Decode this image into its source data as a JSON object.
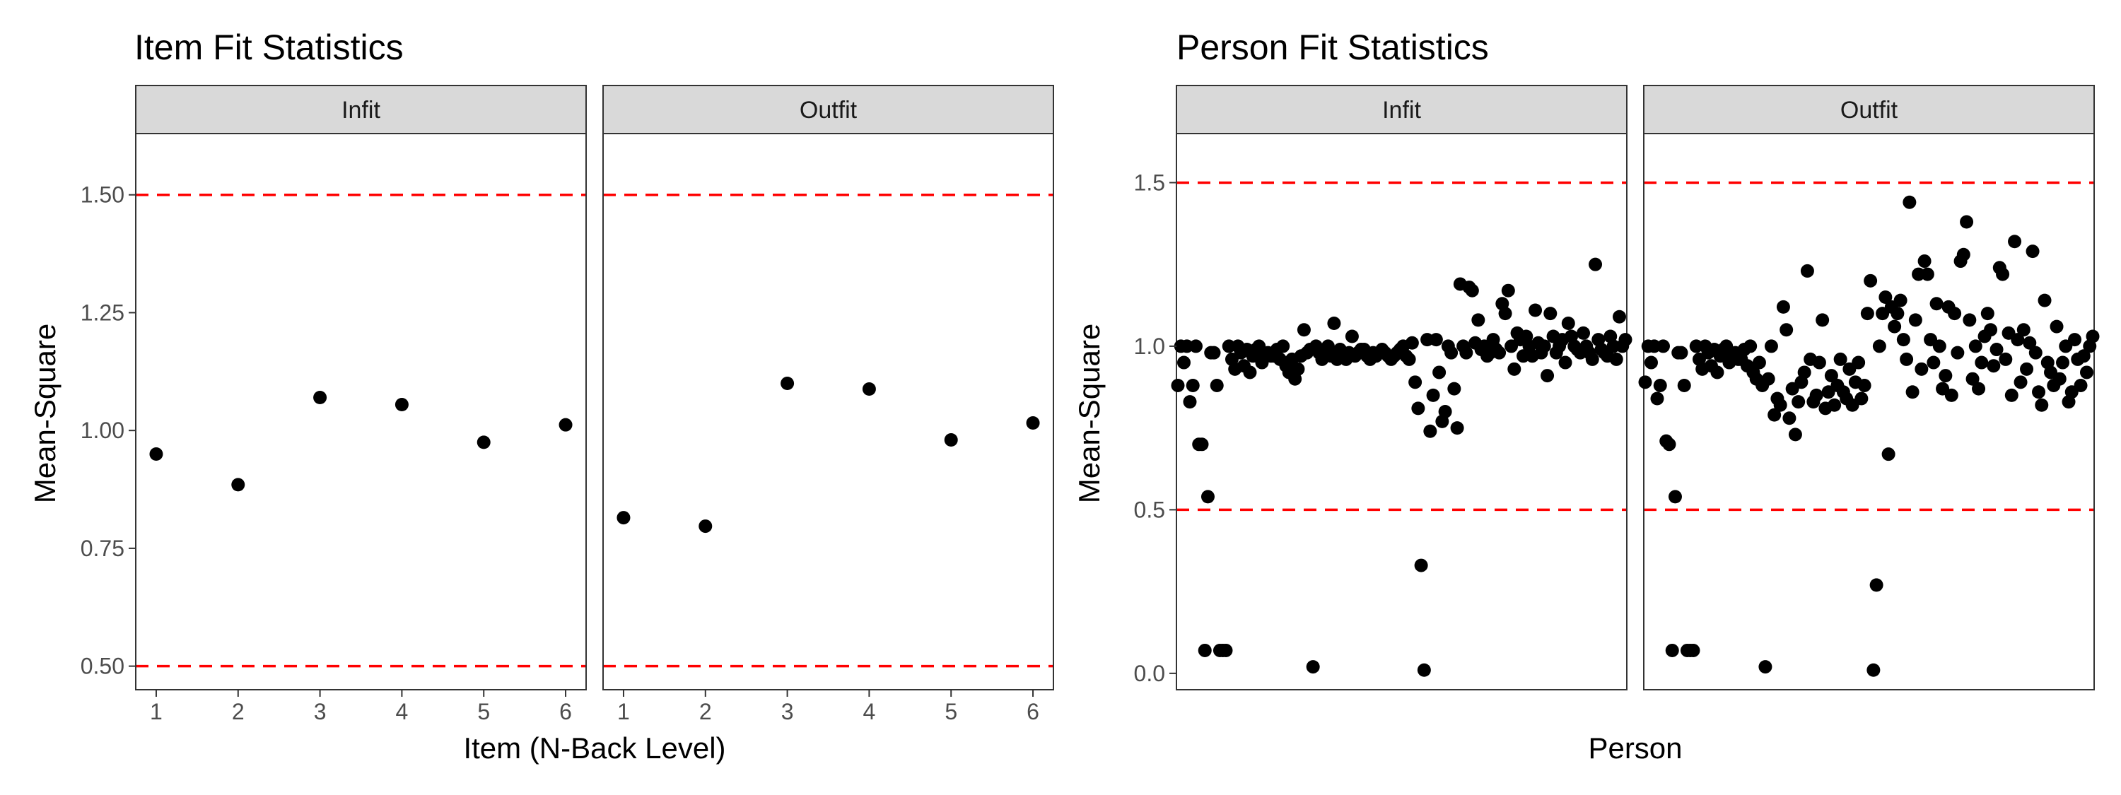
{
  "chart_data": [
    {
      "type": "scatter",
      "title": "Item Fit Statistics",
      "ylabel": "Mean-Square",
      "xlabel": "Item (N-Back Level)",
      "ylim": [
        0.45,
        1.63
      ],
      "xlim": [
        0.75,
        6.25
      ],
      "yticks": [
        0.5,
        0.75,
        1.0,
        1.25,
        1.5
      ],
      "ytick_labels": [
        "0.50",
        "0.75",
        "1.00",
        "1.25",
        "1.50"
      ],
      "xticks": [
        1,
        2,
        3,
        4,
        5,
        6
      ],
      "xtick_labels": [
        "1",
        "2",
        "3",
        "4",
        "5",
        "6"
      ],
      "reference_lines": [
        0.5,
        1.5
      ],
      "reference_line_color": "#ff0000",
      "point_color": "#000000",
      "grid": false,
      "facets": [
        {
          "label": "Infit",
          "points": [
            [
              1,
              0.95
            ],
            [
              2,
              0.885
            ],
            [
              3,
              1.07
            ],
            [
              4,
              1.055
            ],
            [
              5,
              0.975
            ],
            [
              6,
              1.012
            ]
          ]
        },
        {
          "label": "Outfit",
          "points": [
            [
              1,
              0.815
            ],
            [
              2,
              0.797
            ],
            [
              3,
              1.1
            ],
            [
              4,
              1.088
            ],
            [
              5,
              0.98
            ],
            [
              6,
              1.016
            ]
          ]
        }
      ]
    },
    {
      "type": "scatter",
      "title": "Person Fit Statistics",
      "ylabel": "Mean-Square",
      "xlabel": "Person",
      "ylim": [
        -0.05,
        1.65
      ],
      "yticks": [
        0.0,
        0.5,
        1.0,
        1.5
      ],
      "ytick_labels": [
        "0.0",
        "0.5",
        "1.0",
        "1.5"
      ],
      "reference_lines": [
        0.5,
        1.5
      ],
      "reference_line_color": "#ff0000",
      "point_color": "#000000",
      "grid": false,
      "x_axis_ticks": false,
      "facets": [
        {
          "label": "Infit",
          "values": [
            0.88,
            1.0,
            0.95,
            1.0,
            0.83,
            0.88,
            1.0,
            0.7,
            0.7,
            0.07,
            0.54,
            0.98,
            0.98,
            0.88,
            0.07,
            0.07,
            0.07,
            1.0,
            0.96,
            0.93,
            1.0,
            0.98,
            0.94,
            0.99,
            0.92,
            0.97,
            0.99,
            1.0,
            0.95,
            0.97,
            0.98,
            0.97,
            0.97,
            0.99,
            0.96,
            1.0,
            0.94,
            0.92,
            0.96,
            0.9,
            0.93,
            0.97,
            1.05,
            0.98,
            0.99,
            0.02,
            1.0,
            0.98,
            0.96,
            0.97,
            1.0,
            0.97,
            1.07,
            0.96,
            0.99,
            0.97,
            0.96,
            0.98,
            1.03,
            0.97,
            0.98,
            0.99,
            0.99,
            0.97,
            0.96,
            0.98,
            0.97,
            0.98,
            0.99,
            0.98,
            0.97,
            0.96,
            0.97,
            0.98,
            0.99,
            1.0,
            0.97,
            0.96,
            1.01,
            0.89,
            0.81,
            0.33,
            0.01,
            1.02,
            0.74,
            0.85,
            1.02,
            0.92,
            0.77,
            0.8,
            1.0,
            0.98,
            0.87,
            0.75,
            1.19,
            1.0,
            0.98,
            1.18,
            1.17,
            1.01,
            1.08,
            0.99,
            1.0,
            0.97,
            0.98,
            1.02,
            0.99,
            0.98,
            1.13,
            1.1,
            1.17,
            1.0,
            0.93,
            1.04,
            1.02,
            0.97,
            1.03,
            1.0,
            0.97,
            1.11,
            1.01,
            0.98,
            1.0,
            0.91,
            1.1,
            1.03,
            0.98,
            1.0,
            1.02,
            0.95,
            1.07,
            1.03,
            1.0,
            0.99,
            0.98,
            1.04,
            1.0,
            0.98,
            0.96,
            1.25,
            1.02,
            0.99,
            0.98,
            0.97,
            1.03,
            1.0,
            0.96,
            1.09,
            1.0,
            1.02
          ]
        },
        {
          "label": "Outfit",
          "values": [
            0.89,
            1.0,
            0.95,
            1.0,
            0.84,
            0.88,
            1.0,
            0.71,
            0.7,
            0.07,
            0.54,
            0.98,
            0.98,
            0.88,
            0.07,
            0.07,
            0.07,
            1.0,
            0.96,
            0.93,
            1.0,
            0.98,
            0.94,
            0.99,
            0.92,
            0.97,
            0.99,
            1.0,
            0.95,
            0.97,
            0.98,
            0.96,
            0.96,
            0.99,
            0.94,
            1.0,
            0.92,
            0.9,
            0.95,
            0.88,
            0.02,
            0.9,
            1.0,
            0.79,
            0.84,
            0.82,
            1.12,
            1.05,
            0.78,
            0.87,
            0.73,
            0.83,
            0.89,
            0.92,
            1.23,
            0.96,
            0.83,
            0.85,
            0.95,
            1.08,
            0.81,
            0.86,
            0.91,
            0.82,
            0.88,
            0.96,
            0.86,
            0.84,
            0.93,
            0.82,
            0.89,
            0.95,
            0.84,
            0.88,
            1.1,
            1.2,
            0.01,
            0.27,
            1.0,
            1.1,
            1.15,
            0.67,
            1.12,
            1.06,
            1.1,
            1.14,
            1.02,
            0.96,
            1.44,
            0.86,
            1.08,
            1.22,
            0.93,
            1.26,
            1.22,
            1.02,
            0.95,
            1.13,
            1.0,
            0.87,
            0.91,
            1.12,
            0.85,
            1.1,
            0.98,
            1.26,
            1.28,
            1.38,
            1.08,
            0.9,
            1.0,
            0.87,
            0.95,
            1.03,
            1.1,
            1.05,
            0.94,
            0.99,
            1.24,
            1.22,
            0.96,
            1.04,
            0.85,
            1.32,
            1.02,
            0.89,
            1.05,
            0.93,
            1.01,
            1.29,
            0.98,
            0.86,
            0.82,
            1.14,
            0.95,
            0.92,
            0.88,
            1.06,
            0.9,
            0.95,
            1.0,
            0.83,
            0.86,
            1.02,
            0.96,
            0.88,
            0.97,
            0.92,
            1.0,
            1.03
          ]
        }
      ]
    }
  ]
}
